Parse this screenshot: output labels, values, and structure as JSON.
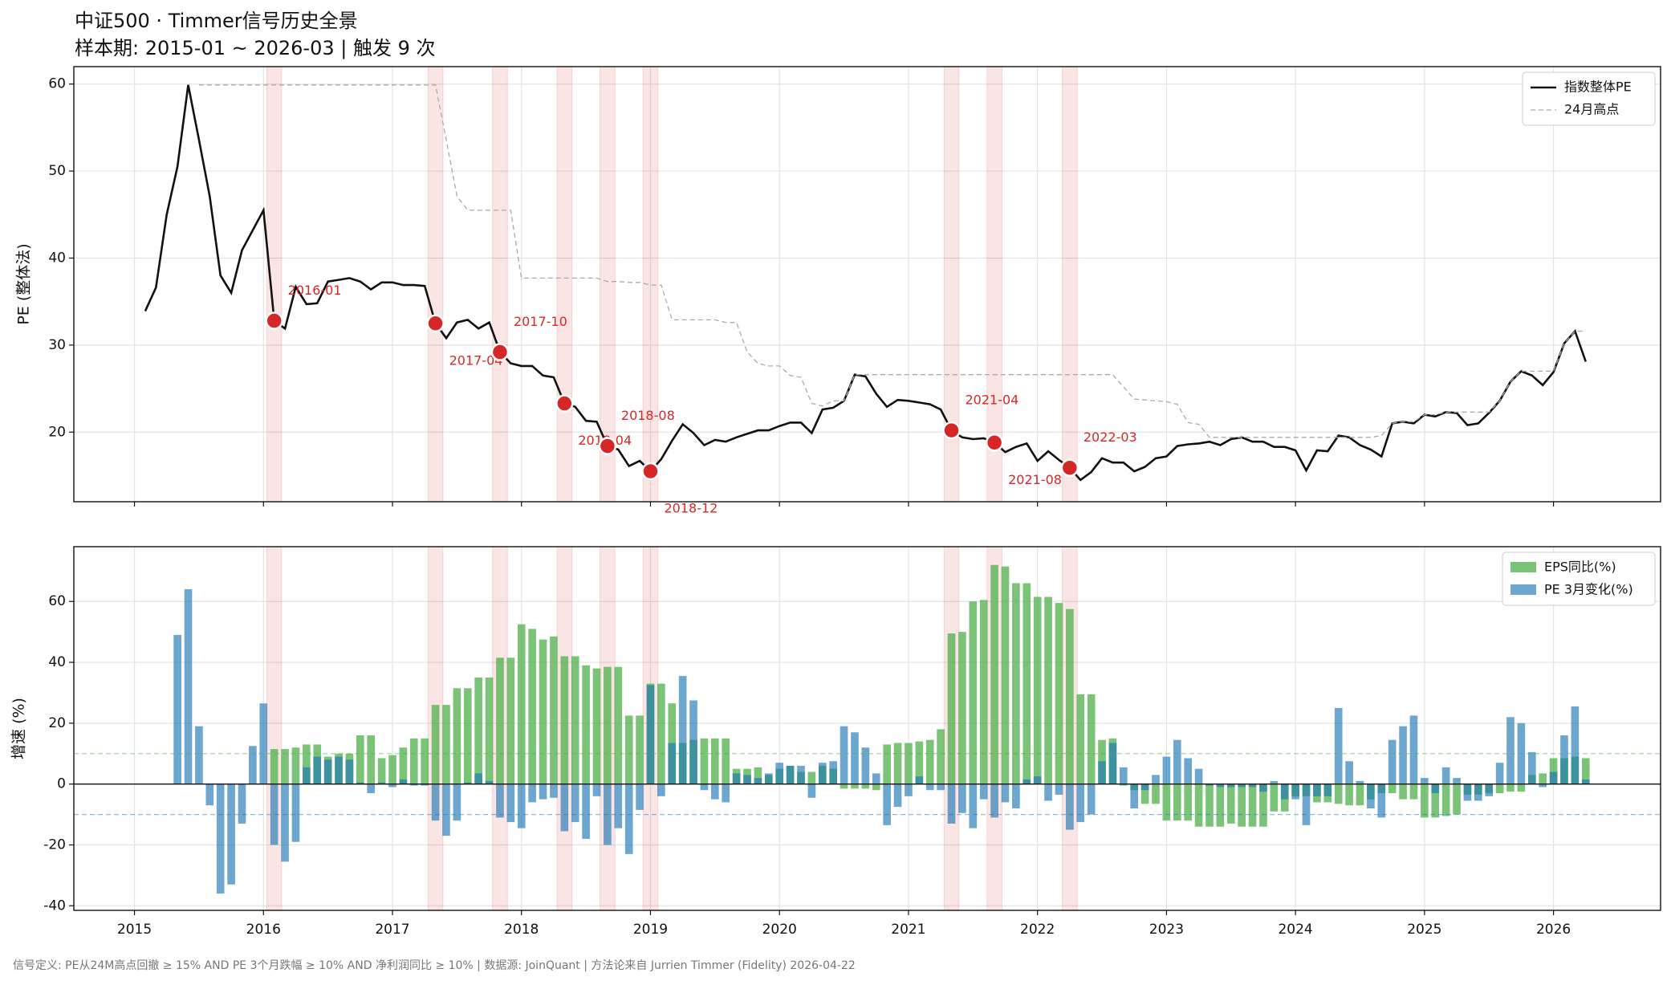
{
  "title": "中证500 · Timmer信号历史全景",
  "subtitle": "样本期: 2015-01 ~ 2026-03  |  触发 9 次",
  "footer": "信号定义: PE从24M高点回撤 ≥ 15% AND PE 3个月跌幅 ≥ 10% AND 净利润同比 ≥ 10%  |  数据源: JoinQuant  |  方法论来自 Jurrien Timmer (Fidelity) 2026-04-22",
  "chart_data": [
    {
      "type": "line",
      "ylabel": "PE (整体法)",
      "x": [
        "2015-01",
        "2015-02",
        "2015-03",
        "2015-04",
        "2015-05",
        "2015-06",
        "2015-07",
        "2015-08",
        "2015-09",
        "2015-10",
        "2015-11",
        "2015-12",
        "2016-01",
        "2016-02",
        "2016-03",
        "2016-04",
        "2016-05",
        "2016-06",
        "2016-07",
        "2016-08",
        "2016-09",
        "2016-10",
        "2016-11",
        "2016-12",
        "2017-01",
        "2017-02",
        "2017-03",
        "2017-04",
        "2017-05",
        "2017-06",
        "2017-07",
        "2017-08",
        "2017-09",
        "2017-10",
        "2017-11",
        "2017-12",
        "2018-01",
        "2018-02",
        "2018-03",
        "2018-04",
        "2018-05",
        "2018-06",
        "2018-07",
        "2018-08",
        "2018-09",
        "2018-10",
        "2018-11",
        "2018-12",
        "2019-01",
        "2019-02",
        "2019-03",
        "2019-04",
        "2019-05",
        "2019-06",
        "2019-07",
        "2019-08",
        "2019-09",
        "2019-10",
        "2019-11",
        "2019-12",
        "2020-01",
        "2020-02",
        "2020-03",
        "2020-04",
        "2020-05",
        "2020-06",
        "2020-07",
        "2020-08",
        "2020-09",
        "2020-10",
        "2020-11",
        "2020-12",
        "2021-01",
        "2021-02",
        "2021-03",
        "2021-04",
        "2021-05",
        "2021-06",
        "2021-07",
        "2021-08",
        "2021-09",
        "2021-10",
        "2021-11",
        "2021-12",
        "2022-01",
        "2022-02",
        "2022-03",
        "2022-04",
        "2022-05",
        "2022-06",
        "2022-07",
        "2022-08",
        "2022-09",
        "2022-10",
        "2022-11",
        "2022-12",
        "2023-01",
        "2023-02",
        "2023-03",
        "2023-04",
        "2023-05",
        "2023-06",
        "2023-07",
        "2023-08",
        "2023-09",
        "2023-10",
        "2023-11",
        "2023-12",
        "2024-01",
        "2024-02",
        "2024-03",
        "2024-04",
        "2024-05",
        "2024-06",
        "2024-07",
        "2024-08",
        "2024-09",
        "2024-10",
        "2024-11",
        "2024-12",
        "2025-01",
        "2025-02",
        "2025-03",
        "2025-04",
        "2025-05",
        "2025-06",
        "2025-07",
        "2025-08",
        "2025-09",
        "2025-10",
        "2025-11",
        "2025-12",
        "2026-01",
        "2026-02",
        "2026-03"
      ],
      "series": [
        {
          "name": "指数整体PE",
          "color": "#111111",
          "dashed": false,
          "values": [
            33.9,
            36.6,
            45,
            50.5,
            59.9,
            53.6,
            47.1,
            38,
            36,
            40.9,
            43.2,
            45.5,
            32.8,
            31.9,
            36.7,
            34.7,
            34.8,
            37.3,
            37.5,
            37.7,
            37.3,
            36.4,
            37.2,
            37.2,
            36.9,
            36.9,
            36.8,
            32.5,
            30.8,
            32.6,
            32.9,
            31.9,
            32.6,
            29.2,
            27.9,
            27.6,
            27.6,
            26.5,
            26.3,
            23.3,
            22.9,
            21.3,
            21.2,
            18.4,
            18.0,
            16.1,
            16.7,
            15.5,
            16.9,
            19.0,
            20.9,
            19.9,
            18.5,
            19.1,
            18.9,
            19.4,
            19.8,
            20.2,
            20.2,
            20.7,
            21.1,
            21.1,
            19.9,
            22.6,
            22.8,
            23.6,
            26.6,
            26.4,
            24.4,
            22.9,
            23.7,
            23.6,
            23.4,
            23.2,
            22.6,
            20.2,
            19.4,
            19.2,
            19.3,
            18.8,
            17.7,
            18.3,
            18.7,
            16.7,
            17.8,
            16.8,
            15.9,
            14.5,
            15.4,
            17.0,
            16.5,
            16.5,
            15.5,
            16.0,
            17.0,
            17.2,
            18.4,
            18.6,
            18.7,
            18.9,
            18.5,
            19.2,
            19.4,
            18.9,
            18.9,
            18.3,
            18.3,
            17.9,
            15.6,
            17.9,
            17.8,
            19.6,
            19.4,
            18.5,
            18.0,
            17.2,
            21.0,
            21.2,
            21.0,
            22.0,
            21.8,
            22.3,
            22.2,
            20.8,
            21.0,
            22.2,
            23.6,
            25.8,
            27.0,
            26.5,
            25.4,
            26.9,
            30.2,
            31.6,
            28.1
          ]
        },
        {
          "name": "24月高点",
          "color": "#aaaaaa",
          "dashed": true,
          "values": [
            null,
            null,
            null,
            null,
            null,
            59.9,
            59.9,
            59.9,
            59.9,
            59.9,
            59.9,
            59.9,
            59.9,
            59.9,
            59.9,
            59.9,
            59.9,
            59.9,
            59.9,
            59.9,
            59.9,
            59.9,
            59.9,
            59.9,
            59.9,
            59.9,
            59.9,
            59.9,
            53.6,
            47.1,
            45.5,
            45.5,
            45.5,
            45.5,
            45.5,
            37.7,
            37.7,
            37.7,
            37.7,
            37.7,
            37.7,
            37.7,
            37.7,
            37.3,
            37.3,
            37.2,
            37.2,
            36.9,
            36.9,
            32.9,
            32.9,
            32.9,
            32.9,
            32.9,
            32.6,
            32.6,
            29.2,
            27.9,
            27.6,
            27.6,
            26.5,
            26.3,
            23.3,
            23.0,
            23.6,
            23.6,
            26.6,
            26.6,
            26.6,
            26.6,
            26.6,
            26.6,
            26.6,
            26.6,
            26.6,
            26.6,
            26.6,
            26.6,
            26.6,
            26.6,
            26.6,
            26.6,
            26.6,
            26.6,
            26.6,
            26.6,
            26.6,
            26.6,
            26.6,
            26.6,
            26.6,
            25.2,
            23.8,
            23.7,
            23.6,
            23.5,
            23.2,
            21.1,
            20.9,
            19.4,
            19.4,
            19.4,
            19.4,
            19.4,
            19.4,
            19.4,
            19.4,
            19.4,
            19.4,
            19.4,
            19.4,
            19.4,
            19.4,
            19.4,
            19.4,
            19.6,
            21.0,
            21.2,
            21.2,
            22.0,
            22.0,
            22.3,
            22.3,
            22.3,
            22.3,
            22.3,
            23.6,
            25.8,
            27.0,
            27.0,
            27.0,
            27.0,
            30.2,
            31.6,
            31.6
          ]
        }
      ],
      "triggers": [
        "2016-01",
        "2017-04",
        "2017-10",
        "2018-04",
        "2018-08",
        "2018-12",
        "2021-04",
        "2021-08",
        "2022-03"
      ],
      "trigger_color": "#d62728",
      "xlim": [
        2014.53,
        2026.83
      ],
      "xticks": [
        2015,
        2016,
        2017,
        2018,
        2019,
        2020,
        2021,
        2022,
        2023,
        2024,
        2025,
        2026
      ],
      "ylim": [
        12,
        62
      ],
      "yticks": [
        20,
        30,
        40,
        50,
        60
      ],
      "grid": true,
      "legend": "upper right"
    },
    {
      "type": "bar",
      "ylabel": "增速 (%)",
      "x": [
        "2015-01",
        "2015-02",
        "2015-03",
        "2015-04",
        "2015-05",
        "2015-06",
        "2015-07",
        "2015-08",
        "2015-09",
        "2015-10",
        "2015-11",
        "2015-12",
        "2016-01",
        "2016-02",
        "2016-03",
        "2016-04",
        "2016-05",
        "2016-06",
        "2016-07",
        "2016-08",
        "2016-09",
        "2016-10",
        "2016-11",
        "2016-12",
        "2017-01",
        "2017-02",
        "2017-03",
        "2017-04",
        "2017-05",
        "2017-06",
        "2017-07",
        "2017-08",
        "2017-09",
        "2017-10",
        "2017-11",
        "2017-12",
        "2018-01",
        "2018-02",
        "2018-03",
        "2018-04",
        "2018-05",
        "2018-06",
        "2018-07",
        "2018-08",
        "2018-09",
        "2018-10",
        "2018-11",
        "2018-12",
        "2019-01",
        "2019-02",
        "2019-03",
        "2019-04",
        "2019-05",
        "2019-06",
        "2019-07",
        "2019-08",
        "2019-09",
        "2019-10",
        "2019-11",
        "2019-12",
        "2020-01",
        "2020-02",
        "2020-03",
        "2020-04",
        "2020-05",
        "2020-06",
        "2020-07",
        "2020-08",
        "2020-09",
        "2020-10",
        "2020-11",
        "2020-12",
        "2021-01",
        "2021-02",
        "2021-03",
        "2021-04",
        "2021-05",
        "2021-06",
        "2021-07",
        "2021-08",
        "2021-09",
        "2021-10",
        "2021-11",
        "2021-12",
        "2022-01",
        "2022-02",
        "2022-03",
        "2022-04",
        "2022-05",
        "2022-06",
        "2022-07",
        "2022-08",
        "2022-09",
        "2022-10",
        "2022-11",
        "2022-12",
        "2023-01",
        "2023-02",
        "2023-03",
        "2023-04",
        "2023-05",
        "2023-06",
        "2023-07",
        "2023-08",
        "2023-09",
        "2023-10",
        "2023-11",
        "2023-12",
        "2024-01",
        "2024-02",
        "2024-03",
        "2024-04",
        "2024-05",
        "2024-06",
        "2024-07",
        "2024-08",
        "2024-09",
        "2024-10",
        "2024-11",
        "2024-12",
        "2025-01",
        "2025-02",
        "2025-03",
        "2025-04",
        "2025-05",
        "2025-06",
        "2025-07",
        "2025-08",
        "2025-09",
        "2025-10",
        "2025-11",
        "2025-12",
        "2026-01",
        "2026-02",
        "2026-03"
      ],
      "series": [
        {
          "name": "EPS同比(%)",
          "color": "#4daf4a",
          "alpha": 0.75,
          "values": [
            null,
            null,
            null,
            null,
            null,
            null,
            null,
            null,
            null,
            null,
            null,
            null,
            11.5,
            11.5,
            12,
            13,
            13,
            9,
            10,
            10,
            16,
            16,
            8.5,
            9.5,
            12,
            15,
            15,
            26,
            26,
            31.5,
            31.5,
            35,
            35,
            41.5,
            41.5,
            52.5,
            51,
            47.5,
            48.5,
            42,
            42,
            39,
            38,
            38.5,
            38.5,
            22.5,
            22.5,
            33,
            33,
            26.5,
            13.5,
            14.5,
            15,
            15,
            15,
            5,
            5,
            5.5,
            3,
            5,
            6,
            4,
            4,
            6,
            5,
            -1.5,
            -1.5,
            -1.5,
            -2,
            13,
            13.5,
            13.5,
            14,
            14.5,
            18,
            49.5,
            50,
            60,
            60.5,
            72,
            71.5,
            66,
            66,
            61.5,
            61.5,
            59.5,
            57.5,
            29.5,
            29.5,
            14.5,
            15,
            -0.5,
            -2,
            -6.5,
            -6.5,
            -12,
            -12,
            -12,
            -14,
            -14,
            -14,
            -13,
            -14,
            -14,
            -14,
            -9,
            -9,
            -4,
            -4,
            -6,
            -6,
            -6.5,
            -7,
            -7,
            -5,
            -3,
            -3,
            -5,
            -5,
            -11,
            -11,
            -10.5,
            -10,
            -3.5,
            -3.5,
            -3,
            -3,
            -2.5,
            -2.5,
            3,
            3.5,
            8.5,
            8.5,
            9,
            8.5
          ]
        },
        {
          "name": "PE 3月变化(%)",
          "color": "#1f77b4",
          "alpha": 0.65,
          "values": [
            null,
            null,
            null,
            49,
            64,
            19,
            -7,
            -36,
            -33,
            -13,
            12.5,
            26.5,
            -20,
            -25.5,
            -19,
            5.5,
            9,
            8,
            9,
            8,
            0.5,
            -3,
            0.5,
            -1,
            1.5,
            -0.5,
            -0.5,
            -12,
            -17,
            -12,
            0.5,
            3.5,
            1,
            -11,
            -12.5,
            -14.5,
            -6,
            -5,
            -4.5,
            -15.5,
            -12.5,
            -18,
            -4,
            -20,
            -14.5,
            -23,
            -8.5,
            32.5,
            -4,
            13.5,
            35.5,
            27.5,
            -2,
            -5,
            -6,
            3.5,
            3,
            2,
            3.5,
            7,
            6,
            6,
            -4.5,
            7,
            7.5,
            19,
            17,
            12,
            3.5,
            -13.5,
            -7.5,
            -4,
            2.5,
            -2,
            -2,
            -13,
            -9.5,
            -14.5,
            -5,
            -11,
            -6,
            -8,
            1.5,
            2.5,
            -5.5,
            -3.5,
            -15,
            -12.5,
            -10,
            7.5,
            13.5,
            5.5,
            -8,
            -2,
            3,
            9,
            14.5,
            8.5,
            5,
            -0.5,
            -1,
            -1,
            -1,
            -1,
            -2.5,
            1,
            -5,
            -5,
            -13.5,
            -4,
            -4,
            25,
            7.5,
            1,
            -8,
            -11,
            14.5,
            19,
            22.5,
            2,
            -3,
            5.5,
            2,
            -5.5,
            -5.5,
            -4,
            7,
            22,
            20,
            10.5,
            -1,
            4,
            16,
            25.5,
            1.5
          ]
        }
      ],
      "hlines": [
        {
          "value": 10,
          "color": "#4daf4a"
        },
        {
          "value": -10,
          "color": "#1f77b4"
        }
      ],
      "xlim": [
        2014.53,
        2026.83
      ],
      "xticks": [
        2015,
        2016,
        2017,
        2018,
        2019,
        2020,
        2021,
        2022,
        2023,
        2024,
        2025,
        2026
      ],
      "ylim": [
        -41.5,
        78
      ],
      "yticks": [
        -40,
        -20,
        0,
        20,
        40,
        60
      ],
      "grid": true,
      "legend": "upper right"
    }
  ]
}
